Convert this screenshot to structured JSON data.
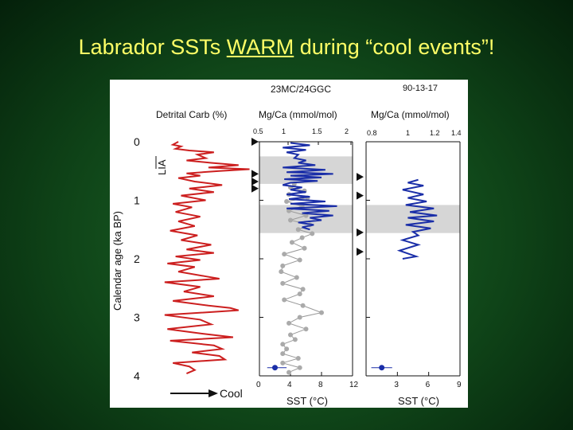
{
  "slide": {
    "title_before": "Labrador SSTs ",
    "title_emph": "WARM",
    "title_after": " during “cool events”!"
  },
  "chart_data": [
    {
      "type": "line",
      "panel": "left",
      "core_label": "23MC/24GGC",
      "title": "Detrital Carb (%)",
      "ylabel": "Calendar age (ka BP)",
      "ylim": [
        0,
        4
      ],
      "yticks": [
        "0",
        "1",
        "2",
        "3",
        "4"
      ],
      "arrow_label": "Cool",
      "band_label": "LIA",
      "series": [
        {
          "name": "Detrital Carb",
          "color": "#cc1f1f",
          "points": [
            [
              14,
              0.0
            ],
            [
              10,
              0.05
            ],
            [
              16,
              0.08
            ],
            [
              12,
              0.12
            ],
            [
              22,
              0.15
            ],
            [
              40,
              0.18
            ],
            [
              28,
              0.22
            ],
            [
              34,
              0.28
            ],
            [
              20,
              0.32
            ],
            [
              38,
              0.36
            ],
            [
              58,
              0.4
            ],
            [
              36,
              0.44
            ],
            [
              66,
              0.47
            ],
            [
              44,
              0.5
            ],
            [
              20,
              0.54
            ],
            [
              30,
              0.58
            ],
            [
              14,
              0.62
            ],
            [
              26,
              0.68
            ],
            [
              46,
              0.74
            ],
            [
              22,
              0.8
            ],
            [
              40,
              0.86
            ],
            [
              16,
              0.92
            ],
            [
              34,
              1.0
            ],
            [
              10,
              1.06
            ],
            [
              24,
              1.12
            ],
            [
              12,
              1.2
            ],
            [
              30,
              1.28
            ],
            [
              14,
              1.36
            ],
            [
              26,
              1.44
            ],
            [
              8,
              1.52
            ],
            [
              28,
              1.6
            ],
            [
              16,
              1.68
            ],
            [
              38,
              1.76
            ],
            [
              20,
              1.84
            ],
            [
              40,
              1.9
            ],
            [
              12,
              1.96
            ],
            [
              30,
              2.02
            ],
            [
              6,
              2.08
            ],
            [
              26,
              2.14
            ],
            [
              14,
              2.22
            ],
            [
              34,
              2.3
            ],
            [
              44,
              2.34
            ],
            [
              4,
              2.4
            ],
            [
              30,
              2.48
            ],
            [
              18,
              2.56
            ],
            [
              40,
              2.64
            ],
            [
              10,
              2.72
            ],
            [
              36,
              2.8
            ],
            [
              52,
              2.84
            ],
            [
              58,
              2.88
            ],
            [
              4,
              2.96
            ],
            [
              30,
              3.04
            ],
            [
              38,
              3.12
            ],
            [
              6,
              3.2
            ],
            [
              32,
              3.28
            ],
            [
              54,
              3.34
            ],
            [
              8,
              3.4
            ],
            [
              40,
              3.48
            ],
            [
              46,
              3.54
            ],
            [
              24,
              3.6
            ],
            [
              44,
              3.66
            ],
            [
              48,
              3.72
            ],
            [
              10,
              3.78
            ],
            [
              22,
              3.84
            ],
            [
              26,
              3.9
            ],
            [
              20,
              3.96
            ]
          ]
        }
      ],
      "markers": [
        0.0,
        0.55,
        0.68,
        0.8
      ]
    },
    {
      "type": "line",
      "panel": "middle",
      "title": "Mg/Ca (mmol/mol)",
      "xlabel": "SST (°C)",
      "top_ticks": [
        "0.5",
        "1",
        "1.5",
        "2"
      ],
      "xticks": [
        "0",
        "4",
        "8",
        "12"
      ],
      "xlim": [
        0,
        12
      ],
      "shaded_intervals": [
        [
          0.25,
          0.72
        ],
        [
          1.08,
          1.56
        ]
      ],
      "series": [
        {
          "name": "23MC (blue)",
          "color": "#1a2ea8",
          "points": [
            [
              4.0,
              0.02
            ],
            [
              6.5,
              0.06
            ],
            [
              3.0,
              0.1
            ],
            [
              6.0,
              0.14
            ],
            [
              3.5,
              0.18
            ],
            [
              5.0,
              0.22
            ],
            [
              4.5,
              0.28
            ],
            [
              6.0,
              0.32
            ],
            [
              5.0,
              0.36
            ],
            [
              7.2,
              0.4
            ],
            [
              3.0,
              0.44
            ],
            [
              8.5,
              0.48
            ],
            [
              3.5,
              0.52
            ],
            [
              9.5,
              0.55
            ],
            [
              4.0,
              0.58
            ],
            [
              8.0,
              0.61
            ],
            [
              3.2,
              0.64
            ],
            [
              7.5,
              0.67
            ],
            [
              4.0,
              0.7
            ],
            [
              3.0,
              0.74
            ],
            [
              5.5,
              0.78
            ],
            [
              4.0,
              0.82
            ],
            [
              6.0,
              0.86
            ],
            [
              3.5,
              0.9
            ],
            [
              6.5,
              0.94
            ],
            [
              3.8,
              0.98
            ],
            [
              8.5,
              1.02
            ],
            [
              4.0,
              1.06
            ],
            [
              10.0,
              1.1
            ],
            [
              3.5,
              1.14
            ],
            [
              9.0,
              1.18
            ],
            [
              5.5,
              1.22
            ],
            [
              9.5,
              1.26
            ],
            [
              6.5,
              1.3
            ],
            [
              8.0,
              1.34
            ],
            [
              5.0,
              1.38
            ],
            [
              7.0,
              1.42
            ],
            [
              5.5,
              1.46
            ],
            [
              6.5,
              1.5
            ]
          ]
        },
        {
          "name": "24GGC (grey)",
          "color": "#aaaaaa",
          "points": [
            [
              4.5,
              0.72
            ],
            [
              4.0,
              0.78
            ],
            [
              5.8,
              0.84
            ],
            [
              3.8,
              0.9
            ],
            [
              6.2,
              0.96
            ],
            [
              3.5,
              1.02
            ],
            [
              5.5,
              1.1
            ],
            [
              3.8,
              1.18
            ],
            [
              6.0,
              1.26
            ],
            [
              4.0,
              1.34
            ],
            [
              6.5,
              1.42
            ],
            [
              5.0,
              1.5
            ],
            [
              6.8,
              1.57
            ],
            [
              5.5,
              1.64
            ],
            [
              4.2,
              1.72
            ],
            [
              5.8,
              1.82
            ],
            [
              3.2,
              1.92
            ],
            [
              5.2,
              2.02
            ],
            [
              3.0,
              2.12
            ],
            [
              2.8,
              2.22
            ],
            [
              4.8,
              2.32
            ],
            [
              3.0,
              2.42
            ],
            [
              5.6,
              2.52
            ],
            [
              5.2,
              2.6
            ],
            [
              3.2,
              2.7
            ],
            [
              5.6,
              2.8
            ],
            [
              8.0,
              2.92
            ],
            [
              5.2,
              3.0
            ],
            [
              3.8,
              3.1
            ],
            [
              6.0,
              3.2
            ],
            [
              4.0,
              3.3
            ],
            [
              4.6,
              3.38
            ],
            [
              3.0,
              3.46
            ],
            [
              3.5,
              3.54
            ],
            [
              3.0,
              3.62
            ],
            [
              5.0,
              3.7
            ],
            [
              3.0,
              3.78
            ],
            [
              5.2,
              3.86
            ],
            [
              3.8,
              3.94
            ]
          ]
        }
      ],
      "error_bar": {
        "value": 2.0,
        "minus": 1.0,
        "plus": 1.5,
        "age": 3.86
      }
    },
    {
      "type": "line",
      "panel": "right",
      "core_label": "90-13-17",
      "title": "Mg/Ca (mmol/mol)",
      "xlabel": "SST (°C)",
      "top_ticks": [
        "0.8",
        "1",
        "1.2",
        "1.4"
      ],
      "xticks": [
        "3",
        "6",
        "9"
      ],
      "xlim": [
        0,
        9
      ],
      "shaded_intervals": [
        [
          1.08,
          1.56
        ]
      ],
      "series": [
        {
          "name": "90-13-17",
          "color": "#1a2ea8",
          "points": [
            [
              5.0,
              0.65
            ],
            [
              4.0,
              0.7
            ],
            [
              5.5,
              0.75
            ],
            [
              3.5,
              0.82
            ],
            [
              5.5,
              0.9
            ],
            [
              4.0,
              0.96
            ],
            [
              5.8,
              1.02
            ],
            [
              3.8,
              1.08
            ],
            [
              6.5,
              1.14
            ],
            [
              4.2,
              1.2
            ],
            [
              6.8,
              1.26
            ],
            [
              4.0,
              1.3
            ],
            [
              6.5,
              1.36
            ],
            [
              3.8,
              1.42
            ],
            [
              6.2,
              1.48
            ],
            [
              4.5,
              1.54
            ],
            [
              5.0,
              1.6
            ],
            [
              3.5,
              1.68
            ],
            [
              5.0,
              1.76
            ],
            [
              3.2,
              1.86
            ],
            [
              4.8,
              1.96
            ],
            [
              3.5,
              2.0
            ]
          ]
        }
      ],
      "markers": [
        0.6,
        0.92,
        1.55,
        1.88
      ],
      "error_bar": {
        "value": 1.5,
        "minus": 1.0,
        "plus": 1.0,
        "age": 3.86
      }
    }
  ]
}
